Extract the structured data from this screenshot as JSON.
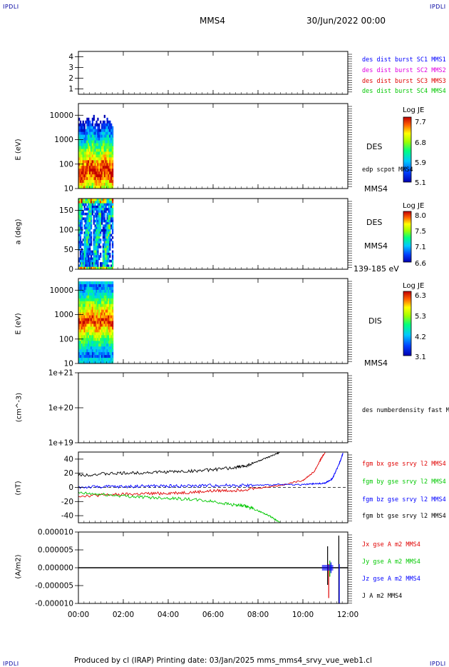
{
  "header": {
    "corner_tl": "IPDLI",
    "corner_tr": "IPDLI",
    "corner_bl": "IPDLI",
    "corner_br": "IPDLI",
    "spacecraft": "MMS4",
    "date": "30/Jun/2022 00:00"
  },
  "footer": {
    "text": "Produced by cl (IRAP)   Printing date: 03/Jan/2025   mms_mms4_srvy_vue_web1.cl"
  },
  "colors": {
    "blue": "#0000ff",
    "magenta": "#e000e0",
    "red": "#e00000",
    "green": "#00c800",
    "black": "#000000"
  },
  "time_axis": {
    "ticks": [
      "00:00",
      "02:00",
      "04:00",
      "06:00",
      "08:00",
      "10:00",
      "12:00"
    ],
    "range_hours": [
      0,
      12
    ]
  },
  "chart_data": [
    {
      "type": "line",
      "title": "",
      "ylabel": "",
      "ylim": [
        0.5,
        4.5
      ],
      "yticks": [
        "1",
        "2",
        "3",
        "4"
      ],
      "series": [
        {
          "name": "des dist burst SC1 MMS1",
          "color": "#0000ff",
          "values": []
        },
        {
          "name": "des dist burst SC2 MMS2",
          "color": "#e000e0",
          "values": []
        },
        {
          "name": "des dist burst SC3 MMS3",
          "color": "#e00000",
          "values": []
        },
        {
          "name": "des dist burst SC4 MMS4",
          "color": "#00c800",
          "values": []
        }
      ]
    },
    {
      "type": "heatmap",
      "ylabel": "E (eV)",
      "yscale": "log",
      "ylim": [
        10,
        30000
      ],
      "yticks": [
        "10",
        "100",
        "1000",
        "10000"
      ],
      "x_range_hours": [
        0,
        1.55
      ],
      "label": "DES",
      "sublabel": "MMS4",
      "overlay_label": "edp scpot MMS4",
      "colorbar": {
        "title": "Log JE",
        "ticks": [
          "7.7",
          "6.8",
          "5.9",
          "5.1"
        ]
      }
    },
    {
      "type": "heatmap",
      "ylabel": "a (deg)",
      "ylim": [
        0,
        180
      ],
      "yticks": [
        "0",
        "50",
        "100",
        "150"
      ],
      "x_range_hours": [
        0,
        1.55
      ],
      "label": "DES",
      "sublabel": "MMS4",
      "energy_range": "139-185 eV",
      "colorbar": {
        "title": "Log JE",
        "ticks": [
          "8.0",
          "7.5",
          "7.1",
          "6.6"
        ]
      }
    },
    {
      "type": "heatmap",
      "ylabel": "E (eV)",
      "yscale": "log",
      "ylim": [
        10,
        30000
      ],
      "yticks": [
        "10",
        "100",
        "1000",
        "10000"
      ],
      "x_range_hours": [
        0,
        1.55
      ],
      "label": "DIS",
      "sublabel": "MMS4",
      "colorbar": {
        "title": "Log JE",
        "ticks": [
          "6.3",
          "5.3",
          "4.2",
          "3.1"
        ]
      }
    },
    {
      "type": "line",
      "ylabel": "(cm^-3)",
      "yscale": "log",
      "ylim": [
        1e+19,
        1e+21
      ],
      "yticks": [
        "1e+19",
        "1e+20",
        "1e+21"
      ],
      "series": [
        {
          "name": "des numberdensity fast M",
          "color": "#000000",
          "values": []
        }
      ]
    },
    {
      "type": "line",
      "ylabel": "(nT)",
      "ylim": [
        -50,
        50
      ],
      "yticks": [
        "-40",
        "-20",
        "0",
        "20",
        "40"
      ],
      "series": [
        {
          "name": "fgm bx gse srvy l2 MMS4",
          "color": "#e00000",
          "points": [
            [
              0,
              -12
            ],
            [
              1,
              -11
            ],
            [
              2,
              -10
            ],
            [
              3,
              -9
            ],
            [
              4,
              -8
            ],
            [
              5,
              -7
            ],
            [
              6,
              -5
            ],
            [
              7,
              -4
            ],
            [
              8,
              -1
            ],
            [
              9,
              3
            ],
            [
              10,
              10
            ],
            [
              10.5,
              22
            ],
            [
              10.8,
              40
            ],
            [
              11.0,
              50
            ]
          ]
        },
        {
          "name": "fgm by gse srvy l2 MMS4",
          "color": "#00c800",
          "points": [
            [
              0,
              -8
            ],
            [
              1,
              -10
            ],
            [
              2,
              -12
            ],
            [
              3,
              -14
            ],
            [
              4,
              -15
            ],
            [
              5,
              -17
            ],
            [
              6,
              -20
            ],
            [
              7,
              -25
            ],
            [
              7.5,
              -27
            ],
            [
              8,
              -33
            ],
            [
              8.5,
              -40
            ],
            [
              9.0,
              -50
            ]
          ]
        },
        {
          "name": "fgm bz gse srvy l2 MMS4",
          "color": "#0000ff",
          "points": [
            [
              0,
              0
            ],
            [
              1,
              1
            ],
            [
              2,
              1
            ],
            [
              3,
              2
            ],
            [
              4,
              2
            ],
            [
              5,
              2
            ],
            [
              6,
              3
            ],
            [
              7,
              3
            ],
            [
              8,
              3
            ],
            [
              9,
              4
            ],
            [
              10,
              4
            ],
            [
              10.5,
              5
            ],
            [
              11,
              6
            ],
            [
              11.3,
              12
            ],
            [
              11.5,
              25
            ],
            [
              11.7,
              40
            ],
            [
              11.8,
              50
            ]
          ]
        },
        {
          "name": "fgm bt gse srvy l2 MMS4",
          "color": "#000000",
          "points": [
            [
              0,
              17
            ],
            [
              1,
              19
            ],
            [
              2,
              20
            ],
            [
              3,
              21
            ],
            [
              4,
              22
            ],
            [
              5,
              23
            ],
            [
              6,
              25
            ],
            [
              7,
              28
            ],
            [
              7.5,
              31
            ],
            [
              8,
              37
            ],
            [
              8.5,
              43
            ],
            [
              9.0,
              50
            ]
          ]
        }
      ]
    },
    {
      "type": "line",
      "ylabel": "(A/m2)",
      "ylim": [
        -1e-05,
        1e-05
      ],
      "yticks": [
        "0.000010",
        "0.000005",
        "0.000000",
        "-0.000005",
        "-0.000010"
      ],
      "series": [
        {
          "name": "Jx gse A m2 MMS4",
          "color": "#e00000",
          "values": []
        },
        {
          "name": "Jy gse A m2 MMS4",
          "color": "#00c800",
          "values": []
        },
        {
          "name": "Jz gse A m2 MMS4",
          "color": "#0000ff",
          "values": []
        },
        {
          "name": "J A m2 MMS4",
          "color": "#000000",
          "values": []
        }
      ]
    }
  ]
}
